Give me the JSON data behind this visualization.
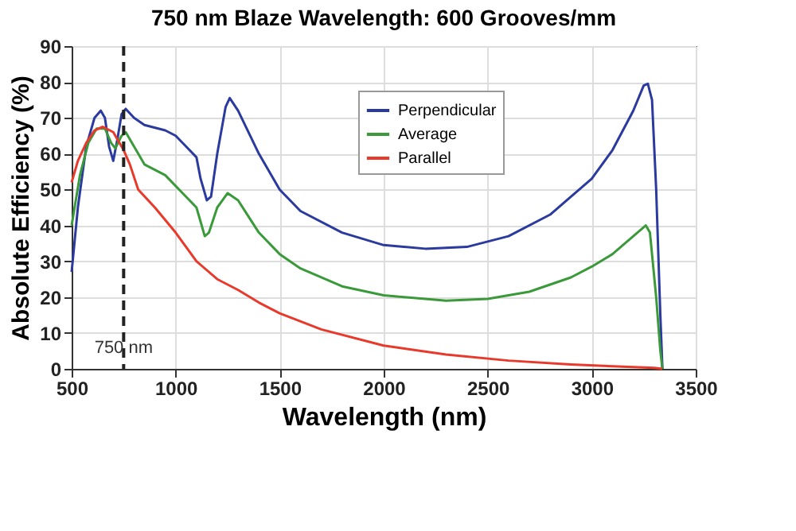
{
  "chart_data": {
    "type": "line",
    "title": "750 nm Blaze Wavelength: 600 Grooves/mm",
    "xlabel": "Wavelength (nm)",
    "ylabel": "Absolute Efficiency (%)",
    "xlim": [
      500,
      3500
    ],
    "xticks": [
      500,
      1000,
      1500,
      2000,
      2500,
      3000,
      3500
    ],
    "ylim": [
      0,
      90
    ],
    "yticks": [
      0,
      10,
      20,
      30,
      40,
      50,
      60,
      70,
      80,
      90
    ],
    "grid": true,
    "legend": "top right",
    "line_style": "solid",
    "marker": "none",
    "ref_lines": [
      {
        "axis": "x",
        "value": 750,
        "label": "750 nm",
        "color": "#222222",
        "line_style": "dashed"
      }
    ],
    "series": [
      {
        "name": "Perpendicular",
        "color": "#2b3a9e",
        "x": [
          500,
          530,
          570,
          610,
          640,
          660,
          680,
          700,
          720,
          740,
          760,
          800,
          850,
          950,
          1000,
          1050,
          1100,
          1120,
          1150,
          1170,
          1200,
          1240,
          1260,
          1300,
          1400,
          1500,
          1600,
          1800,
          2000,
          2200,
          2400,
          2600,
          2800,
          3000,
          3100,
          3200,
          3250,
          3270,
          3290,
          3310,
          3330,
          3340
        ],
        "values": [
          27,
          45,
          62,
          70,
          72,
          70,
          62,
          58,
          64,
          71,
          72.5,
          70,
          68,
          66.5,
          65,
          62,
          59,
          53,
          47,
          48,
          60,
          73,
          75.5,
          72,
          60,
          50,
          44,
          38,
          34.5,
          33.5,
          34,
          37,
          43,
          53,
          61,
          72,
          79,
          79.5,
          75,
          50,
          15,
          0
        ]
      },
      {
        "name": "Average",
        "color": "#3a9a3a",
        "x": [
          500,
          540,
          580,
          620,
          660,
          690,
          710,
          740,
          760,
          800,
          850,
          950,
          1050,
          1100,
          1140,
          1160,
          1200,
          1250,
          1300,
          1400,
          1500,
          1600,
          1800,
          2000,
          2300,
          2500,
          2700,
          2900,
          3000,
          3100,
          3200,
          3260,
          3280,
          3310,
          3330,
          3340
        ],
        "values": [
          40,
          54,
          63,
          67,
          67,
          63,
          61.5,
          65,
          66,
          62,
          57,
          54,
          48,
          45,
          37,
          38,
          45,
          49,
          47,
          38,
          32,
          28,
          23,
          20.5,
          19,
          19.5,
          21.5,
          25.5,
          28.5,
          32,
          37,
          40,
          38,
          20,
          5,
          0
        ]
      },
      {
        "name": "Parallel",
        "color": "#e8392b",
        "x": [
          500,
          530,
          570,
          610,
          650,
          700,
          750,
          780,
          820,
          900,
          1000,
          1100,
          1200,
          1300,
          1400,
          1500,
          1700,
          2000,
          2300,
          2600,
          2900,
          3100,
          3300,
          3340
        ],
        "values": [
          52,
          58,
          63,
          66.5,
          67.5,
          66,
          61,
          57,
          50,
          45,
          38,
          30,
          25,
          22,
          18.5,
          15.5,
          11,
          6.5,
          4,
          2.3,
          1.2,
          0.7,
          0.3,
          0
        ]
      }
    ]
  }
}
